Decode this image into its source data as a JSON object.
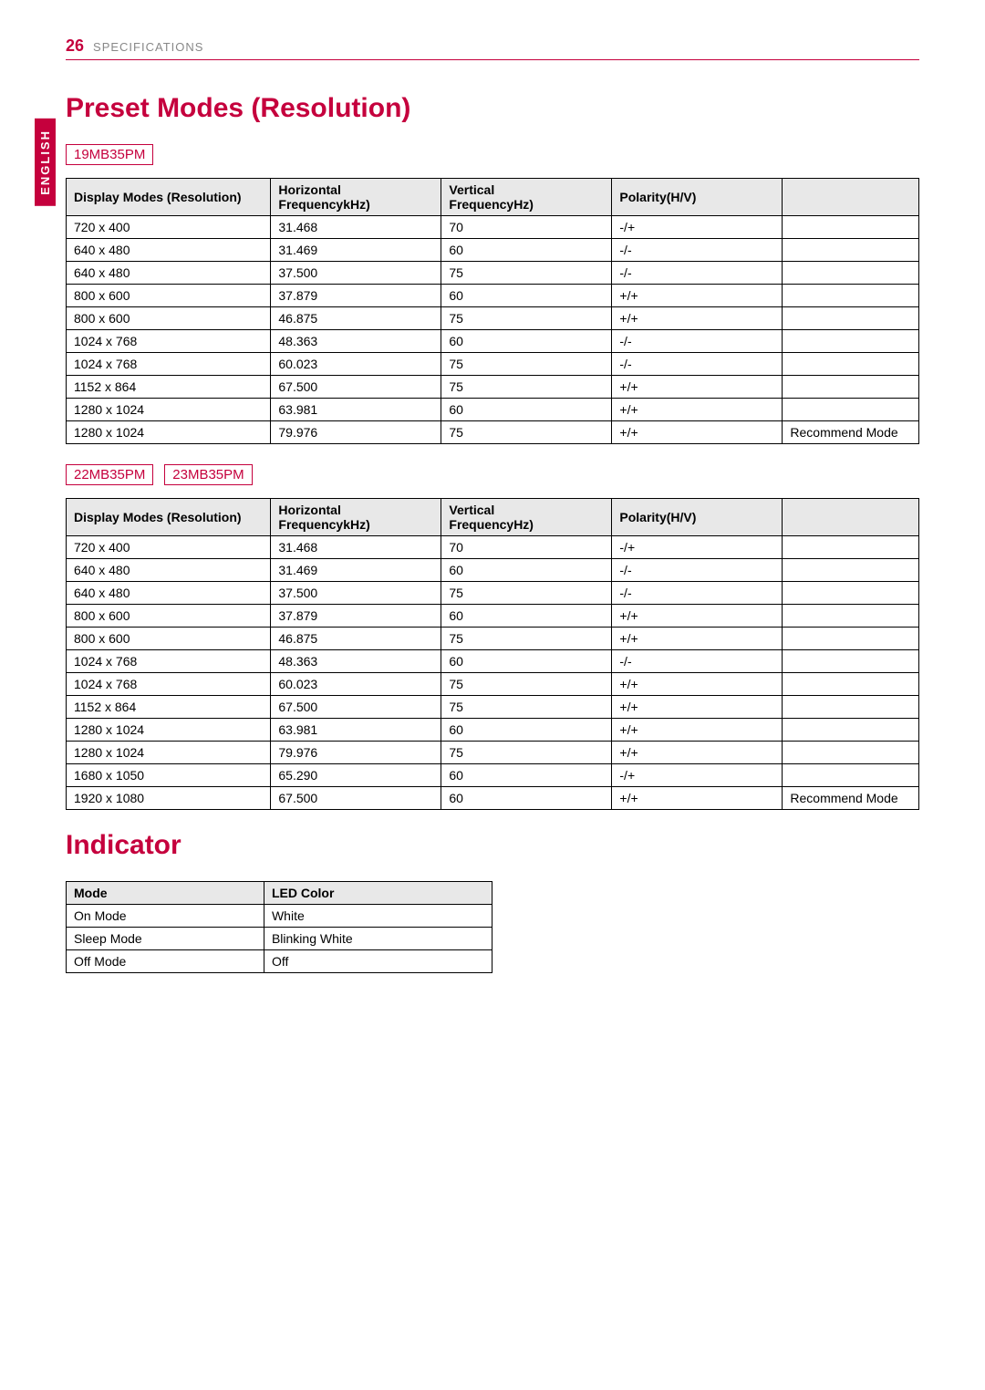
{
  "header": {
    "page_number": "26",
    "section": "SPECIFICATIONS",
    "side_label": "ENGLISH"
  },
  "title_preset": "Preset Modes (Resolution)",
  "title_indicator": "Indicator",
  "table1": {
    "models": [
      "19MB35PM"
    ],
    "columns": {
      "resolution": "Display Modes (Resolution)",
      "hfreq_l1": "Horizontal",
      "hfreq_l2": "FrequencykHz)",
      "vfreq_l1": "Vertical",
      "vfreq_l2": "FrequencyHz)",
      "polarity": "Polarity(H/V)",
      "note": ""
    },
    "rows": [
      [
        "720 x 400",
        "31.468",
        "70",
        "-/+",
        ""
      ],
      [
        "640 x 480",
        "31.469",
        "60",
        "-/-",
        ""
      ],
      [
        "640 x 480",
        "37.500",
        "75",
        "-/-",
        ""
      ],
      [
        "800 x 600",
        "37.879",
        "60",
        "+/+",
        ""
      ],
      [
        "800 x 600",
        "46.875",
        "75",
        "+/+",
        ""
      ],
      [
        "1024 x 768",
        "48.363",
        "60",
        "-/-",
        ""
      ],
      [
        "1024 x 768",
        "60.023",
        "75",
        "-/-",
        ""
      ],
      [
        "1152 x 864",
        "67.500",
        "75",
        "+/+",
        ""
      ],
      [
        "1280 x 1024",
        "63.981",
        "60",
        "+/+",
        ""
      ],
      [
        "1280 x 1024",
        "79.976",
        "75",
        "+/+",
        "Recommend Mode"
      ]
    ]
  },
  "table2": {
    "models": [
      "22MB35PM",
      "23MB35PM"
    ],
    "columns": {
      "resolution": "Display Modes (Resolution)",
      "hfreq_l1": "Horizontal",
      "hfreq_l2": "FrequencykHz)",
      "vfreq_l1": "Vertical",
      "vfreq_l2": "FrequencyHz)",
      "polarity": "Polarity(H/V)",
      "note": ""
    },
    "rows": [
      [
        "720 x 400",
        "31.468",
        "70",
        "-/+",
        ""
      ],
      [
        "640 x 480",
        "31.469",
        "60",
        "-/-",
        ""
      ],
      [
        "640 x 480",
        "37.500",
        "75",
        "-/-",
        ""
      ],
      [
        "800 x 600",
        "37.879",
        "60",
        "+/+",
        ""
      ],
      [
        "800 x 600",
        "46.875",
        "75",
        "+/+",
        ""
      ],
      [
        "1024 x 768",
        "48.363",
        "60",
        "-/-",
        ""
      ],
      [
        "1024 x 768",
        "60.023",
        "75",
        "+/+",
        ""
      ],
      [
        "1152 x 864",
        "67.500",
        "75",
        "+/+",
        ""
      ],
      [
        "1280 x 1024",
        "63.981",
        "60",
        "+/+",
        ""
      ],
      [
        "1280 x 1024",
        "79.976",
        "75",
        "+/+",
        ""
      ],
      [
        "1680 x 1050",
        "65.290",
        "60",
        "-/+",
        ""
      ],
      [
        "1920 x 1080",
        "67.500",
        "60",
        "+/+",
        "Recommend Mode"
      ]
    ]
  },
  "indicator": {
    "columns": {
      "mode": "Mode",
      "led": "LED Color"
    },
    "rows": [
      [
        "On Mode",
        "White"
      ],
      [
        "Sleep Mode",
        "Blinking White"
      ],
      [
        "Off Mode",
        "Off"
      ]
    ]
  }
}
